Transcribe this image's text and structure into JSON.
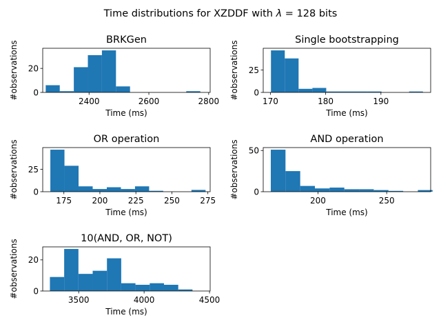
{
  "figure": {
    "suptitle_prefix": "Time distributions for XZDDF with ",
    "suptitle_lambda": "λ",
    "suptitle_suffix": " = 128 bits"
  },
  "chart_data": [
    {
      "type": "bar",
      "title": "BRKGen",
      "xlabel": "Time (ms)",
      "ylabel": "#observations",
      "xlim": [
        2245,
        2805
      ],
      "ylim": [
        0,
        36.75
      ],
      "xticks": [
        2400,
        2600,
        2800
      ],
      "yticks": [
        0,
        20
      ],
      "bins": [
        2255,
        2302,
        2349,
        2396,
        2443,
        2490,
        2537,
        2584,
        2631,
        2678,
        2725,
        2772
      ],
      "counts": [
        6,
        1,
        21,
        31,
        35,
        5,
        0,
        0,
        0,
        0,
        1
      ]
    },
    {
      "type": "bar",
      "title": "Single bootstrapping",
      "xlabel": "Time (ms)",
      "ylabel": "#observations",
      "xlim": [
        168.7,
        199.0
      ],
      "ylim": [
        0,
        49.35
      ],
      "xticks": [
        170,
        180,
        190
      ],
      "yticks": [
        0,
        25
      ],
      "bins": [
        170.1,
        172.6,
        175.1,
        177.6,
        180.1,
        182.6,
        185.1,
        187.6,
        190.1,
        192.6,
        195.1,
        197.6
      ],
      "counts": [
        47,
        38,
        4,
        5,
        1,
        1,
        1,
        1,
        0,
        0,
        1
      ]
    },
    {
      "type": "bar",
      "title": "OR operation",
      "xlabel": "Time (ms)",
      "ylabel": "#observations",
      "xlim": [
        160.3,
        276.6
      ],
      "ylim": [
        0,
        49.35
      ],
      "xticks": [
        175,
        200,
        225,
        250,
        275
      ],
      "yticks": [
        0,
        25
      ],
      "bins": [
        165.6,
        175.4,
        185.2,
        195.0,
        204.8,
        214.6,
        224.4,
        234.2,
        244.0,
        253.8,
        263.6,
        273.4
      ],
      "counts": [
        47,
        29,
        6,
        3,
        5,
        3,
        6,
        1,
        0,
        0,
        2
      ]
    },
    {
      "type": "bar",
      "title": "AND operation",
      "xlabel": "Time (ms)",
      "ylabel": "#observations",
      "xlim": [
        160.2,
        282.0
      ],
      "ylim": [
        0,
        53.55
      ],
      "xticks": [
        200,
        250
      ],
      "yticks": [
        0,
        50
      ],
      "bins": [
        165.7,
        176.4,
        187.1,
        197.8,
        208.5,
        219.2,
        229.9,
        240.6,
        251.3,
        262.0,
        272.7,
        283.4
      ],
      "counts": [
        51,
        25,
        7,
        4,
        5,
        3,
        3,
        2,
        1,
        0,
        2
      ]
    },
    {
      "type": "bar",
      "title": "10(AND, OR, NOT)",
      "xlabel": "Time (ms)",
      "ylabel": "#observations",
      "xlim": [
        3225,
        4505
      ],
      "ylim": [
        0,
        28.35
      ],
      "xticks": [
        3500,
        4000,
        4500
      ],
      "yticks": [
        0,
        20
      ],
      "bins": [
        3280,
        3389,
        3498,
        3607,
        3716,
        3825,
        3934,
        4043,
        4152,
        4261,
        4370,
        4479
      ],
      "counts": [
        9,
        27,
        11,
        13,
        21,
        5,
        4,
        5,
        4,
        1,
        0
      ]
    }
  ]
}
